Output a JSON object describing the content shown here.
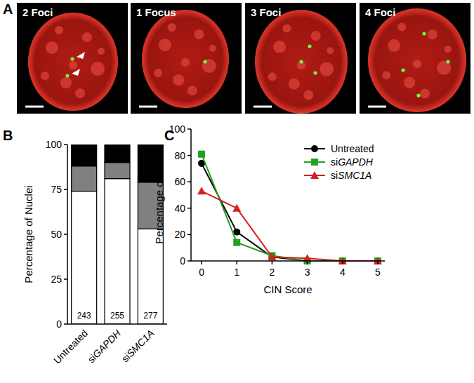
{
  "panel_labels": [
    "A",
    "B",
    "C"
  ],
  "images": {
    "labels": [
      "2 Foci",
      "1 Focus",
      "3 Foci",
      "4 Foci"
    ]
  },
  "chart_data": [
    {
      "type": "bar",
      "stacked": true,
      "y_label": "Percentage of Nuclei",
      "categories": [
        "Untreated",
        "siGAPDH",
        "siSMC1A"
      ],
      "series": [
        {
          "color": "#ffffff",
          "values": [
            74,
            81,
            53
          ]
        },
        {
          "color": "#808080",
          "values": [
            14,
            9,
            26
          ]
        },
        {
          "color": "#000000",
          "values": [
            12,
            10,
            21
          ]
        }
      ],
      "ylim": [
        0,
        100
      ],
      "yticks": [
        0,
        25,
        50,
        75,
        100
      ],
      "n": [
        243,
        255,
        277
      ]
    },
    {
      "type": "line",
      "x_label": "CIN Score",
      "y_label": "Percentage of Nuclei",
      "x": [
        0,
        1,
        2,
        3,
        4,
        5
      ],
      "series": [
        {
          "name": "Untreated",
          "color": "#000000",
          "marker": "circle",
          "values": [
            74,
            22,
            3,
            0,
            0,
            0
          ]
        },
        {
          "name": "siGAPDH",
          "color": "#22a022",
          "marker": "square",
          "values": [
            81,
            14,
            4,
            0,
            0,
            0
          ]
        },
        {
          "name": "siSMC1A",
          "color": "#d42020",
          "marker": "triangle",
          "values": [
            53,
            40,
            3,
            2,
            0,
            0
          ]
        }
      ],
      "xlim": [
        -0.3,
        5.2
      ],
      "xticks": [
        0,
        1,
        2,
        3,
        4,
        5
      ],
      "ylim": [
        0,
        100
      ],
      "yticks": [
        0,
        20,
        40,
        60,
        80,
        100
      ],
      "legend": "upper right"
    }
  ]
}
